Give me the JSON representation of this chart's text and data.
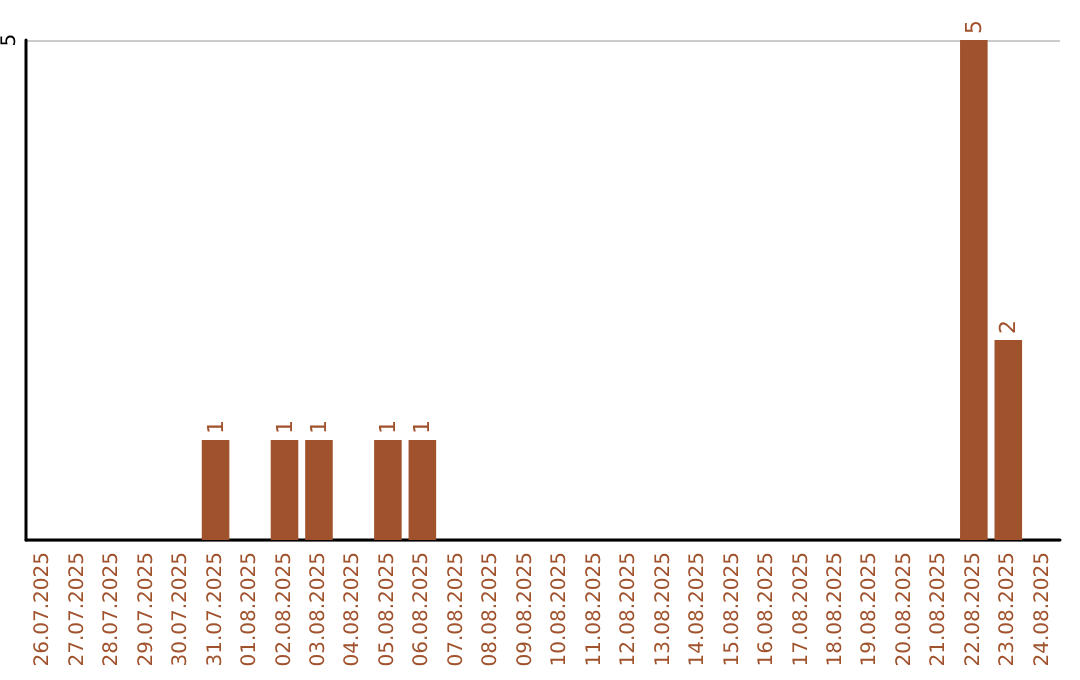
{
  "chart_data": {
    "type": "bar",
    "categories": [
      "26.07.2025",
      "27.07.2025",
      "28.07.2025",
      "29.07.2025",
      "30.07.2025",
      "31.07.2025",
      "01.08.2025",
      "02.08.2025",
      "03.08.2025",
      "04.08.2025",
      "05.08.2025",
      "06.08.2025",
      "07.08.2025",
      "08.08.2025",
      "09.08.2025",
      "10.08.2025",
      "11.08.2025",
      "12.08.2025",
      "13.08.2025",
      "14.08.2025",
      "15.08.2025",
      "16.08.2025",
      "17.08.2025",
      "18.08.2025",
      "19.08.2025",
      "20.08.2025",
      "21.08.2025",
      "22.08.2025",
      "23.08.2025",
      "24.08.2025"
    ],
    "values": [
      0,
      0,
      0,
      0,
      0,
      1,
      0,
      1,
      1,
      0,
      1,
      1,
      0,
      0,
      0,
      0,
      0,
      0,
      0,
      0,
      0,
      0,
      0,
      0,
      0,
      0,
      0,
      5,
      2,
      0
    ],
    "value_labels": [
      null,
      null,
      null,
      null,
      null,
      "1",
      null,
      "1",
      "1",
      null,
      "1",
      "1",
      null,
      null,
      null,
      null,
      null,
      null,
      null,
      null,
      null,
      null,
      null,
      null,
      null,
      null,
      null,
      "5",
      "2",
      null
    ],
    "color": "#a0522d",
    "ylim": [
      0,
      5
    ],
    "yticks": [
      {
        "value": 0,
        "label": null
      },
      5
    ],
    "grid": "y"
  }
}
